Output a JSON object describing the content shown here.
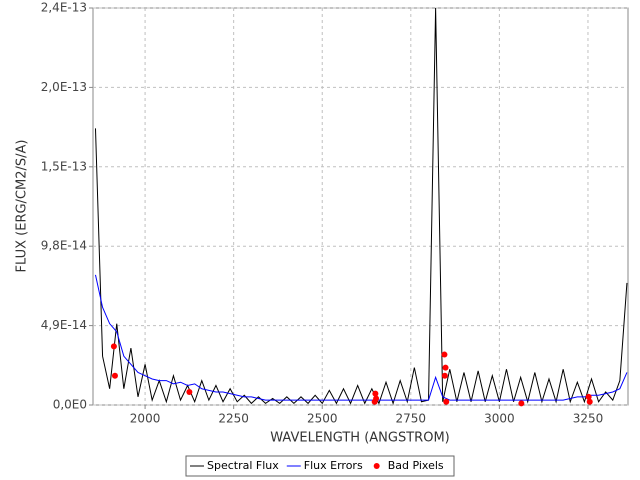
{
  "chart_data": {
    "type": "line",
    "xlabel": "WAVELENGTH (ANGSTROM)",
    "ylabel": "FLUX (ERG/CM2/S/A)",
    "x": [
      1860,
      1880,
      1900,
      1920,
      1940,
      1960,
      1980,
      2000,
      2020,
      2040,
      2060,
      2080,
      2100,
      2120,
      2140,
      2160,
      2180,
      2200,
      2220,
      2240,
      2260,
      2280,
      2300,
      2320,
      2340,
      2360,
      2380,
      2400,
      2420,
      2440,
      2460,
      2480,
      2500,
      2520,
      2540,
      2560,
      2580,
      2600,
      2620,
      2640,
      2660,
      2680,
      2700,
      2720,
      2740,
      2760,
      2780,
      2800,
      2820,
      2840,
      2860,
      2880,
      2900,
      2920,
      2940,
      2960,
      2980,
      3000,
      3020,
      3040,
      3060,
      3080,
      3100,
      3120,
      3140,
      3160,
      3180,
      3200,
      3220,
      3240,
      3260,
      3280,
      3300,
      3320,
      3340,
      3360
    ],
    "series": [
      {
        "name": "Spectral Flux",
        "color": "#000000",
        "values": [
          1.7e-13,
          3e-14,
          1e-14,
          5e-14,
          1e-14,
          3.5e-14,
          5e-15,
          2.5e-14,
          3e-15,
          1.5e-14,
          2e-15,
          1.8e-14,
          3e-15,
          1.2e-14,
          2e-15,
          1.5e-14,
          3e-15,
          1.2e-14,
          2e-15,
          1e-14,
          2e-15,
          6e-15,
          1e-15,
          5e-15,
          1e-15,
          4e-15,
          1e-15,
          5e-15,
          1e-15,
          5e-15,
          1e-15,
          6e-15,
          1e-15,
          9e-15,
          1e-15,
          1e-14,
          1e-15,
          1.2e-14,
          1e-15,
          1e-14,
          1e-15,
          1.4e-14,
          1e-15,
          1.5e-14,
          2e-15,
          2.3e-14,
          2e-15,
          3e-15,
          2.44e-13,
          2e-15,
          2.2e-14,
          2e-15,
          2e-14,
          2e-15,
          2.1e-14,
          2e-15,
          1.8e-14,
          2e-15,
          2.2e-14,
          2e-15,
          1.7e-14,
          2e-15,
          2e-14,
          2e-15,
          1.6e-14,
          2e-15,
          2.2e-14,
          2e-15,
          1.4e-14,
          2e-15,
          1.6e-14,
          2e-15,
          8e-15,
          3e-15,
          1.5e-14,
          7.5e-14
        ]
      },
      {
        "name": "Flux Errors",
        "color": "#0000ff",
        "values": [
          8e-14,
          6e-14,
          5e-14,
          4.5e-14,
          3e-14,
          2.5e-14,
          2e-14,
          1.8e-14,
          1.6e-14,
          1.5e-14,
          1.5e-14,
          1.3e-14,
          1.4e-14,
          1.2e-14,
          1.3e-14,
          1e-14,
          9e-15,
          8e-15,
          8e-15,
          7e-15,
          6e-15,
          5e-15,
          5e-15,
          4e-15,
          3e-15,
          3e-15,
          3e-15,
          3e-15,
          3e-15,
          3e-15,
          3e-15,
          3e-15,
          3e-15,
          3e-15,
          3e-15,
          3e-15,
          3e-15,
          3e-15,
          3e-15,
          3e-15,
          3e-15,
          3e-15,
          3e-15,
          3e-15,
          3e-15,
          3e-15,
          3e-15,
          3e-15,
          1.7e-14,
          5e-15,
          3e-15,
          3e-15,
          3e-15,
          3e-15,
          3e-15,
          3e-15,
          3e-15,
          3e-15,
          3e-15,
          3e-15,
          3e-15,
          3e-15,
          3e-15,
          3e-15,
          3e-15,
          3e-15,
          3e-15,
          4e-15,
          5e-15,
          5e-15,
          6e-15,
          6e-15,
          7e-15,
          8e-15,
          1e-14,
          2e-14
        ]
      },
      {
        "name": "Bad Pixels",
        "color": "#ff0000",
        "type": "scatter",
        "x": [
          1912,
          1915,
          2125,
          2648,
          2650,
          2652,
          2845,
          2848,
          2846,
          2850,
          3062,
          3252,
          3255
        ],
        "values": [
          3.6e-14,
          1.8e-14,
          8e-15,
          2e-15,
          7e-15,
          4e-15,
          3.1e-14,
          2.3e-14,
          1.8e-14,
          2e-15,
          1e-15,
          5e-15,
          2e-15
        ]
      }
    ],
    "xlim": [
      1853,
      3363
    ],
    "xticks": [
      2000,
      2250,
      2500,
      2750,
      3000,
      3250
    ],
    "ylim": [
      0,
      2.44e-13
    ],
    "yticks": [
      {
        "value": 0,
        "label": "0,0E0"
      },
      {
        "value": 4.88e-14,
        "label": "4,9E-14"
      },
      {
        "value": 9.76e-14,
        "label": "9,8E-14"
      },
      {
        "value": 1.464e-13,
        "label": "1,5E-13"
      },
      {
        "value": 1.952e-13,
        "label": "2,0E-13"
      },
      {
        "value": 2.44e-13,
        "label": "2,4E-13"
      }
    ],
    "grid": true,
    "legend": "bottom"
  }
}
